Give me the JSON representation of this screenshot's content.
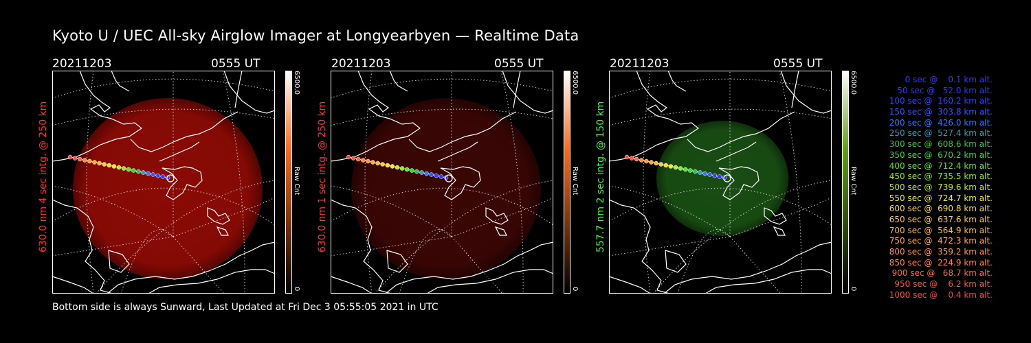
{
  "title": "Kyoto U / UEC All-sky Airglow Imager at Longyearbyen — Realtime Data",
  "footer": "Bottom side is always Sunward, Last Updated at Fri Dec  3 05:55:05 2021 in UTC",
  "panels": [
    {
      "date": "20211203",
      "time": "0555 UT",
      "ylabel": "630.0 nm 4 sec intg. @ 250 km",
      "color": "#ff3333",
      "glow": "#8b0a05",
      "cb_top": "#ffffff",
      "cb_bottom": "#000000",
      "cb_mid": "#ff6a1a",
      "cb_max": "6500.0",
      "cb_min": "0",
      "cb_unit": "Raw Cnt"
    },
    {
      "date": "20211203",
      "time": "0555 UT",
      "ylabel": "630.0 nm 1 sec intg. @ 250 km",
      "color": "#ff3333",
      "glow": "#3a0604",
      "cb_top": "#ffffff",
      "cb_bottom": "#000000",
      "cb_mid": "#ff6a1a",
      "cb_max": "6500.0",
      "cb_min": "0",
      "cb_unit": "Raw Cnt"
    },
    {
      "date": "20211203",
      "time": "0555 UT",
      "ylabel": "557.7 nm 2 sec intg. @ 150 km",
      "color": "#33ff33",
      "glow": "#184d12",
      "cb_top": "#ffffff",
      "cb_bottom": "#000000",
      "cb_mid": "#5fa11a",
      "cb_max": "6500.0",
      "cb_min": "0",
      "cb_unit": "Raw Cnt"
    }
  ],
  "legend": [
    {
      "text": "   0 sec @    0.1 km alt.",
      "color": "#3333ff"
    },
    {
      "text": "  50 sec @   52.0 km alt.",
      "color": "#3333ff"
    },
    {
      "text": " 100 sec @  160.2 km alt.",
      "color": "#3340ff"
    },
    {
      "text": " 150 sec @  303.8 km alt.",
      "color": "#3355ff"
    },
    {
      "text": " 200 sec @  426.0 km alt.",
      "color": "#3377ff"
    },
    {
      "text": " 250 sec @  527.4 km alt.",
      "color": "#2aa0c0"
    },
    {
      "text": " 300 sec @  608.6 km alt.",
      "color": "#22cc44"
    },
    {
      "text": " 350 sec @  670.2 km alt.",
      "color": "#33dd33"
    },
    {
      "text": " 400 sec @  712.4 km alt.",
      "color": "#55ee22"
    },
    {
      "text": " 450 sec @  735.5 km alt.",
      "color": "#88ee22"
    },
    {
      "text": " 500 sec @  739.6 km alt.",
      "color": "#bbee22"
    },
    {
      "text": " 550 sec @  724.7 km alt.",
      "color": "#eeee22"
    },
    {
      "text": " 600 sec @  690.8 km alt.",
      "color": "#ffdd22"
    },
    {
      "text": " 650 sec @  637.6 km alt.",
      "color": "#ffcc33"
    },
    {
      "text": " 700 sec @  564.9 km alt.",
      "color": "#ffbb33"
    },
    {
      "text": " 750 sec @  472.3 km alt.",
      "color": "#ffaa44"
    },
    {
      "text": " 800 sec @  359.2 km alt.",
      "color": "#ff9944"
    },
    {
      "text": " 850 sec @  224.9 km alt.",
      "color": "#ff8844"
    },
    {
      "text": " 900 sec @   68.7 km alt.",
      "color": "#ff6644"
    },
    {
      "text": " 950 sec @    6.2 km alt.",
      "color": "#ff5544"
    },
    {
      "text": "1000 sec @    0.4 km alt.",
      "color": "#ff4444"
    }
  ]
}
